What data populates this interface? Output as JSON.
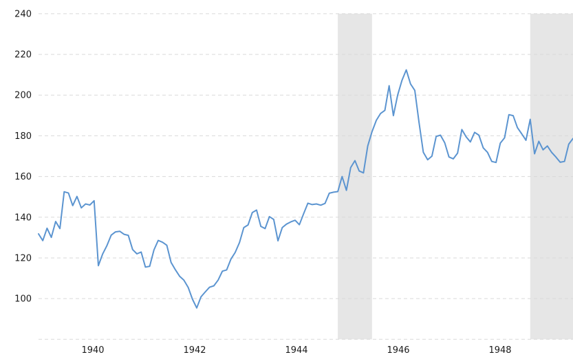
{
  "chart_data": {
    "type": "line",
    "title": "",
    "legend": "none",
    "grid": "horizontal-dashed",
    "x_axis": {
      "tick_labels": [
        "1940",
        "1942",
        "1944",
        "1946",
        "1948"
      ],
      "approx_range_years": [
        1938.95,
        1949.45
      ]
    },
    "y_axis": {
      "tick_labels": [
        "240",
        "220",
        "200",
        "180",
        "160",
        "140",
        "120",
        "100"
      ],
      "tick_values": [
        240,
        220,
        200,
        180,
        160,
        140,
        120,
        100
      ],
      "range": [
        80,
        240
      ],
      "gridline_step": 20
    },
    "x_months": {
      "start": "1939-03",
      "end": "1949-08",
      "interval": "monthly",
      "n_points": 126
    },
    "values": [
      131.8,
      128.5,
      134.6,
      130.1,
      137.9,
      134.4,
      152.5,
      151.9,
      145.7,
      150.2,
      144.6,
      146.5,
      146.0,
      148.1,
      116.2,
      121.9,
      126.1,
      131.2,
      132.8,
      133.1,
      131.6,
      131.1,
      124.1,
      122.0,
      122.9,
      115.5,
      115.9,
      123.9,
      128.6,
      127.7,
      126.2,
      117.8,
      114.2,
      111.0,
      109.1,
      105.5,
      99.7,
      95.4,
      100.9,
      103.3,
      105.6,
      106.3,
      109.1,
      113.5,
      114.1,
      119.4,
      122.7,
      127.6,
      134.9,
      136.2,
      142.3,
      143.5,
      135.5,
      134.4,
      140.3,
      138.9,
      128.4,
      134.9,
      136.6,
      137.7,
      138.5,
      136.3,
      141.7,
      146.9,
      146.2,
      146.5,
      145.9,
      146.8,
      151.8,
      152.3,
      152.6,
      160.0,
      153.2,
      164.4,
      167.8,
      162.7,
      161.8,
      175.0,
      182.0,
      187.6,
      191.0,
      192.5,
      204.6,
      189.9,
      200.0,
      207.3,
      212.4,
      205.5,
      202.3,
      186.5,
      171.9,
      168.2,
      170.0,
      179.7,
      180.3,
      176.6,
      169.6,
      168.7,
      171.5,
      183.1,
      179.5,
      177.0,
      181.7,
      180.3,
      174.1,
      171.9,
      167.4,
      166.9,
      176.4,
      179.0,
      190.4,
      189.9,
      184.0,
      181.0,
      177.8,
      188.1,
      171.2,
      177.3,
      173.1,
      175.0,
      171.9,
      169.6,
      167.0,
      167.4,
      175.9,
      178.7
    ],
    "shaded_bands": [
      {
        "start_index": 70,
        "end_index": 78,
        "approx_span": "1945-01 to 1945-09",
        "kind": "gray-band"
      },
      {
        "start_index": 115,
        "end_index": 125,
        "approx_span": "1948-10 to 1949-08",
        "kind": "gray-band"
      }
    ],
    "colors": {
      "line": "#5b94d0",
      "band": "#e6e6e6",
      "gridline": "#d9d9d9",
      "text": "#1a1a1a",
      "background": "#ffffff"
    }
  }
}
